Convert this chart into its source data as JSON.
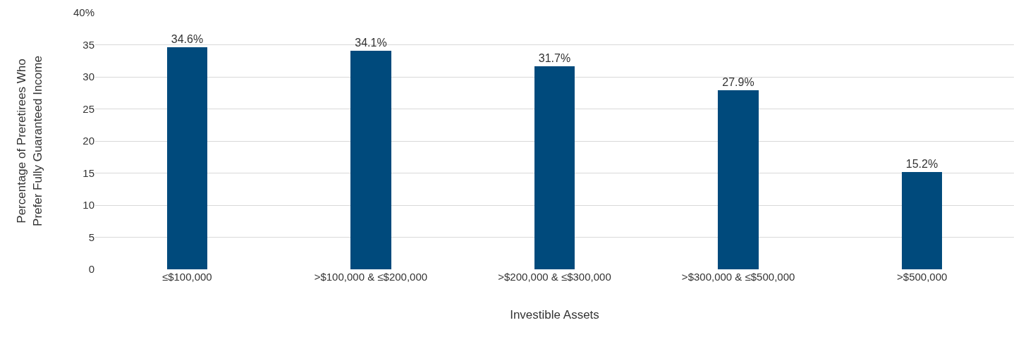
{
  "chart_data": {
    "type": "bar",
    "xlabel": "Investible Assets",
    "ylabel": "Percentage of Preretirees Who\nPrefer Fully Guaranteed Income",
    "categories": [
      "≤$100,000",
      ">$100,000 & ≤$200,000",
      ">$200,000 & ≤$300,000",
      ">$300,000 & ≤$500,000",
      ">$500,000"
    ],
    "values": [
      34.6,
      34.1,
      31.7,
      27.9,
      15.2
    ],
    "value_labels": [
      "34.6%",
      "34.1%",
      "31.7%",
      "27.9%",
      "15.2%"
    ],
    "color": "#004a7c",
    "ylim": [
      0,
      40
    ],
    "yticks": [
      0,
      5,
      10,
      15,
      20,
      25,
      30,
      35,
      {
        "value": 40,
        "label": "40%"
      }
    ],
    "grid": "y",
    "legend": false
  }
}
